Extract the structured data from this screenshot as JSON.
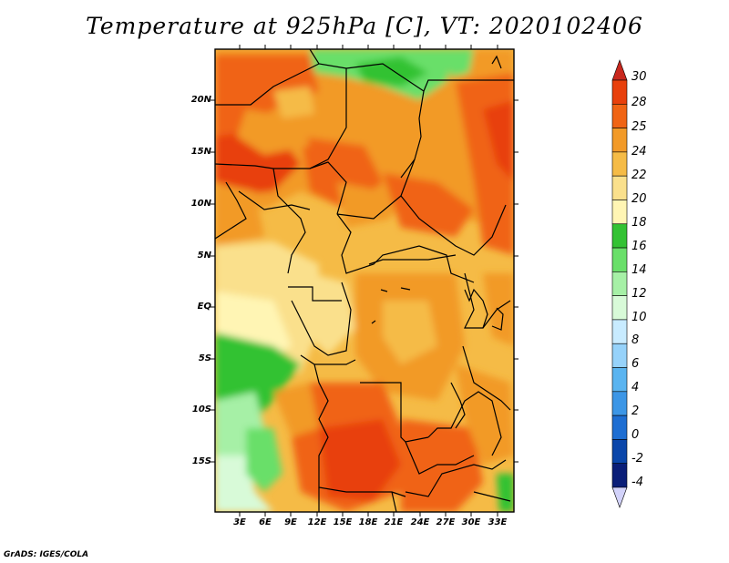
{
  "title": "Temperature at 925hPa [C], VT: 2020102406",
  "credit": "GrADS: IGES/COLA",
  "map": {
    "lat_labels": [
      "20N",
      "15N",
      "10N",
      "5N",
      "EQ",
      "5S",
      "10S",
      "15S"
    ],
    "lon_labels": [
      "3E",
      "6E",
      "9E",
      "12E",
      "15E",
      "18E",
      "21E",
      "24E",
      "27E",
      "30E",
      "33E"
    ]
  },
  "colorbar": {
    "labels": [
      "30",
      "28",
      "25",
      "24",
      "22",
      "20",
      "18",
      "16",
      "14",
      "12",
      "10",
      "8",
      "6",
      "4",
      "2",
      "0",
      "-2",
      "-4"
    ],
    "colors": [
      "#c8281e",
      "#e8400c",
      "#f06414",
      "#f29a28",
      "#f5bb46",
      "#fae08c",
      "#fff5b4",
      "#33c233",
      "#69df69",
      "#a6f0a6",
      "#d8fad8",
      "#c8ebff",
      "#96d2fa",
      "#5ab4f0",
      "#3c96e6",
      "#1e6ed2",
      "#0a46aa",
      "#0a1e78",
      "#d2d2fa"
    ]
  }
}
